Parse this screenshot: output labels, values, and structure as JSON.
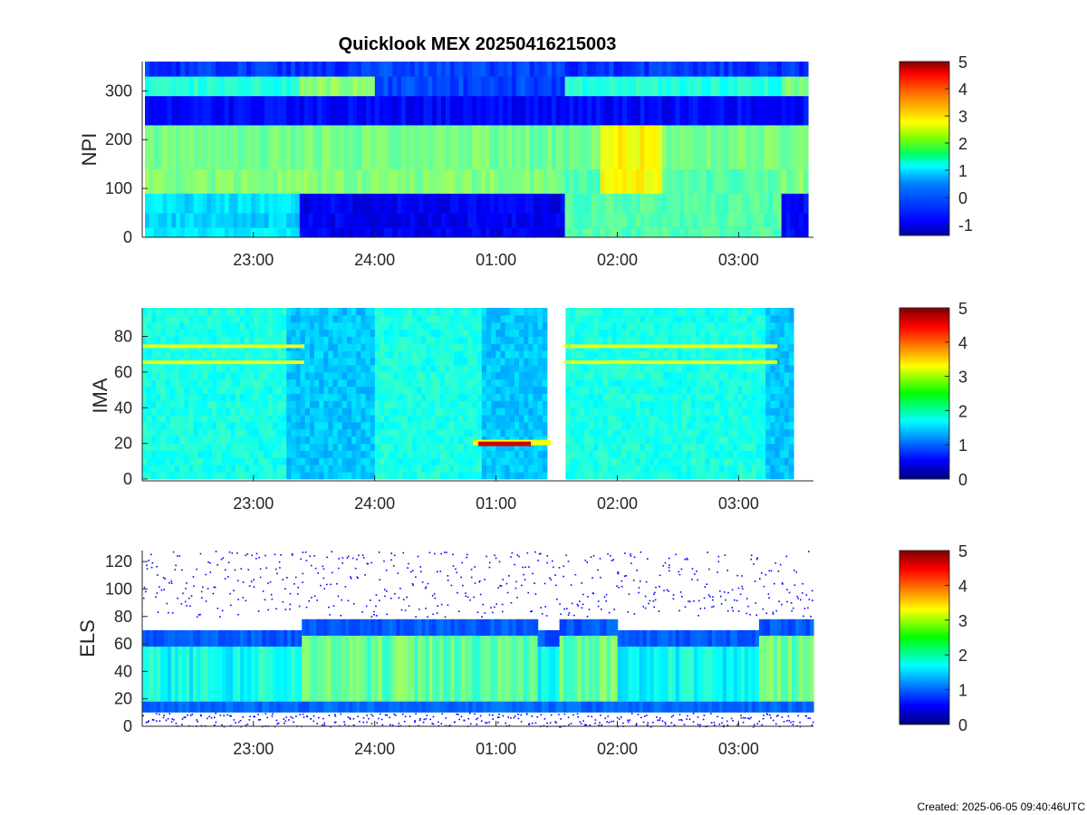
{
  "figure": {
    "title": "Quicklook MEX 20250416215003",
    "footer": "Created: 2025-06-05 09:40:46UTC"
  },
  "chart_data": [
    {
      "type": "heatmap",
      "ylabel": "NPI",
      "xlabel": "",
      "x_range": [
        "22:05",
        "03:35"
      ],
      "xticks": [
        "23:00",
        "24:00",
        "01:00",
        "02:00",
        "03:00"
      ],
      "ylim": [
        0,
        360
      ],
      "yticks": [
        0,
        100,
        200,
        300
      ],
      "colorbar": {
        "range": [
          -1.4,
          5
        ],
        "ticks": [
          -1,
          0,
          1,
          2,
          3,
          4,
          5
        ]
      },
      "features": [
        {
          "band": [
            0,
            20
          ],
          "level": 0.6
        },
        {
          "band": [
            20,
            50
          ],
          "level": 0.4
        },
        {
          "band": [
            50,
            90
          ],
          "level": 0.5
        },
        {
          "band": [
            90,
            140
          ],
          "level": 1.5
        },
        {
          "band": [
            140,
            230
          ],
          "level": 1.4
        },
        {
          "band": [
            230,
            290
          ],
          "level": -0.9
        },
        {
          "band": [
            290,
            330
          ],
          "level": 0.9
        },
        {
          "band": [
            330,
            360
          ],
          "level": -0.6
        }
      ]
    },
    {
      "type": "heatmap",
      "ylabel": "IMA",
      "xlabel": "",
      "x_range": [
        "22:05",
        "03:35"
      ],
      "xticks": [
        "23:00",
        "24:00",
        "01:00",
        "02:00",
        "03:00"
      ],
      "ylim": [
        0,
        96
      ],
      "yticks": [
        0,
        20,
        40,
        60,
        80
      ],
      "colorbar": {
        "range": [
          0,
          5
        ],
        "ticks": [
          0,
          1,
          2,
          3,
          4,
          5
        ]
      },
      "data_gap": [
        "01:30",
        "01:37"
      ],
      "features": [
        {
          "label": "line",
          "y": 74,
          "level": 2.9
        },
        {
          "label": "line",
          "y": 65,
          "level": 2.9
        },
        {
          "label": "hot",
          "y": 20,
          "time": [
            "00:53",
            "01:30"
          ],
          "level": 4.6
        }
      ]
    },
    {
      "type": "heatmap",
      "ylabel": "ELS",
      "xlabel": "",
      "x_range": [
        "22:05",
        "03:40"
      ],
      "xticks": [
        "23:00",
        "24:00",
        "01:00",
        "02:00",
        "03:00"
      ],
      "ylim": [
        0,
        128
      ],
      "yticks": [
        0,
        20,
        40,
        60,
        80,
        100,
        120
      ],
      "colorbar": {
        "range": [
          0,
          5
        ],
        "ticks": [
          0,
          1,
          2,
          3,
          4,
          5
        ]
      },
      "features": [
        {
          "band": [
            20,
            60
          ],
          "level": 1.6
        },
        {
          "band": [
            60,
            80
          ],
          "level": 0.8
        },
        {
          "band": [
            80,
            128
          ],
          "level": 0.2
        }
      ]
    }
  ]
}
